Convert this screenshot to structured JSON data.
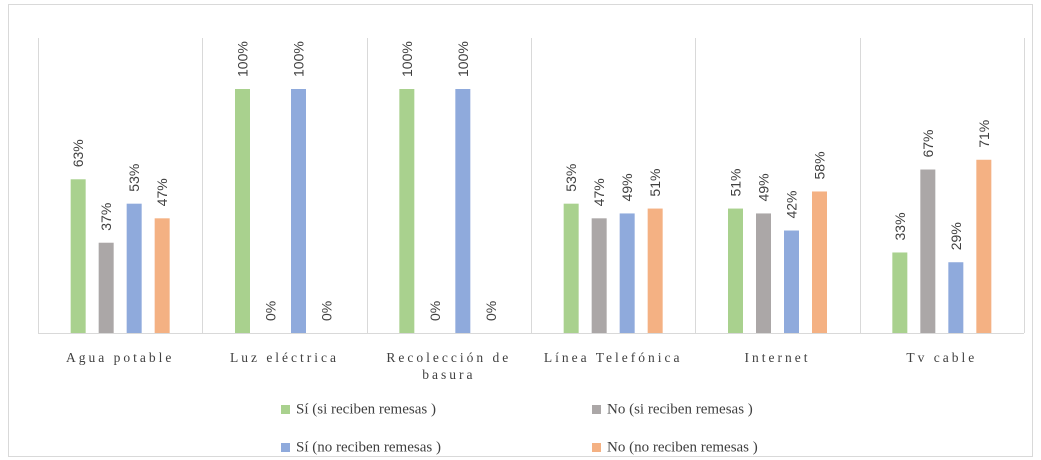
{
  "chart_data": {
    "type": "bar",
    "categories": [
      "Agua potable",
      "Luz eléctrica",
      "Recolección de basura",
      "Línea Telefónica",
      "Internet",
      "Tv cable"
    ],
    "series": [
      {
        "name": "Sí (si reciben remesas )",
        "color": "#a9d18e",
        "values": [
          63,
          100,
          100,
          53,
          51,
          33
        ],
        "value_labels": [
          "63%",
          "100%",
          "100%",
          "53%",
          "51%",
          "33%"
        ]
      },
      {
        "name": "No (si reciben remesas )",
        "color": "#aba7a7",
        "values": [
          37,
          0,
          0,
          47,
          49,
          67
        ],
        "value_labels": [
          "37%",
          "0%",
          "0%",
          "47%",
          "49%",
          "67%"
        ]
      },
      {
        "name": "Sí (no reciben remesas )",
        "color": "#8faadc",
        "values": [
          53,
          100,
          100,
          49,
          42,
          29
        ],
        "value_labels": [
          "53%",
          "100%",
          "100%",
          "49%",
          "42%",
          "29%"
        ]
      },
      {
        "name": "No (no reciben remesas )",
        "color": "#f4b183",
        "values": [
          47,
          0,
          0,
          51,
          58,
          71
        ],
        "value_labels": [
          "47%",
          "0%",
          "0%",
          "51%",
          "58%",
          "71%"
        ]
      }
    ],
    "legend": "bottom"
  }
}
